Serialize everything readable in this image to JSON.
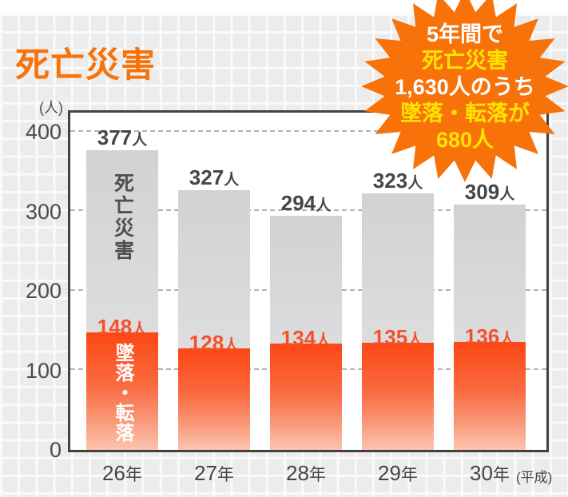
{
  "title": "死亡災害",
  "badge": {
    "lines": [
      {
        "text": "5年間で",
        "color": "white"
      },
      {
        "text": "死亡災害",
        "color": "yellow"
      },
      {
        "text": "1,630人のうち",
        "color": "white"
      },
      {
        "text": "墜落・転落が",
        "color": "yellow"
      },
      {
        "text": "680人",
        "color": "yellow"
      }
    ]
  },
  "chart_data": {
    "type": "bar",
    "subtype": "overlay-stacked",
    "title": "死亡災害",
    "y_axis_unit": "(人)",
    "y_ticks": [
      400,
      300,
      200,
      100,
      0
    ],
    "ylim": [
      0,
      420
    ],
    "grid": "horizontal-dashed",
    "legend_position": "labels-inside-first-bar",
    "categories": [
      "26",
      "27",
      "28",
      "29",
      "30"
    ],
    "category_suffix": "年",
    "era_note": "(平成)",
    "value_suffix": "人",
    "series": [
      {
        "name": "死亡災害",
        "values": [
          377,
          327,
          294,
          323,
          309
        ]
      },
      {
        "name": "墜落・転落",
        "values": [
          148,
          128,
          134,
          135,
          136
        ]
      }
    ],
    "colors": {
      "accent_orange": "#f8720a",
      "badge_yellow": "#ffe400",
      "falls_red": "#fc4714",
      "total_gray": "#d2d2d4",
      "total_label": "#464646",
      "falls_label": "#f5502a"
    }
  }
}
